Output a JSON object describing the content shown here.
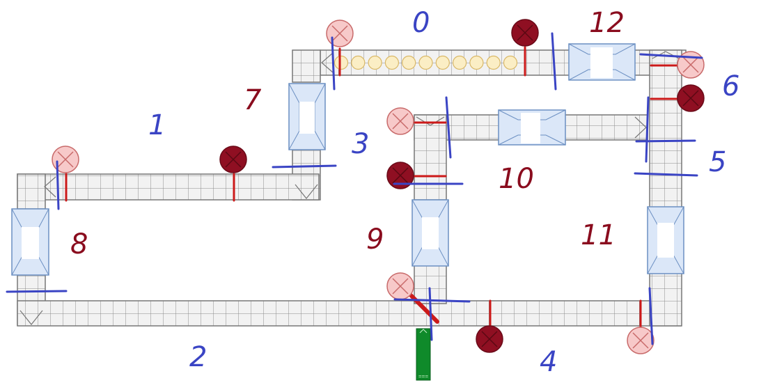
{
  "labels": {
    "blue": [
      "0",
      "1",
      "2",
      "3",
      "4",
      "5",
      "6"
    ],
    "red": [
      "7",
      "8",
      "9",
      "10",
      "11",
      "12"
    ]
  },
  "diagram": {
    "conveyor_segments": 11,
    "transfer_units": 6,
    "lamps_on": 5,
    "lamps_off": 6,
    "queued_items_on_top_belt": 11,
    "source_block_label": "==="
  },
  "colors": {
    "belt_fill": "#f2f2f2",
    "belt_grid": "#7a7a7a",
    "transfer_fill": "#dbe7f8",
    "transfer_stroke": "#6b8fc2",
    "lamp_on": "#8f0f22",
    "lamp_off": "#f7c9c9",
    "sensor_red": "#cc1a1a",
    "annotation_blue": "#3a44c4",
    "annotation_red": "#8a0c1e",
    "source_green": "#0f8a2a",
    "item_fill": "#fbeec5"
  }
}
